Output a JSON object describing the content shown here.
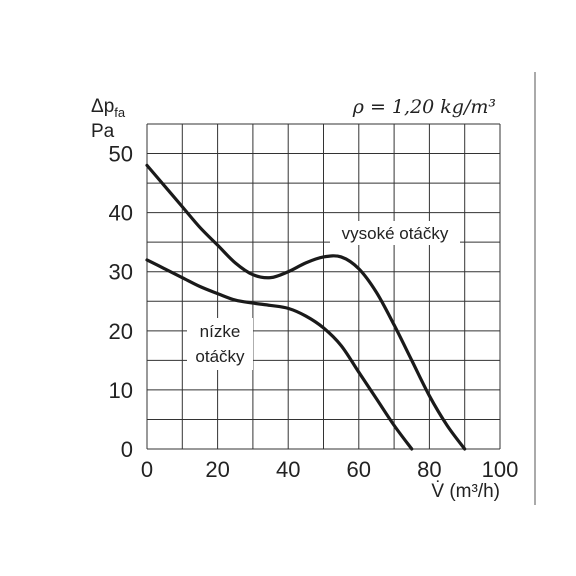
{
  "chart_data": {
    "type": "line",
    "title": "ρ = 1,20 kg/m³",
    "xlabel": "V̇ (m³/h)",
    "ylabel_top": "Δp",
    "ylabel_sub": "fa",
    "ylabel_unit": "Pa",
    "xlim": [
      0,
      100
    ],
    "ylim": [
      0,
      55
    ],
    "grid": true,
    "x_ticks": [
      0,
      20,
      40,
      60,
      80,
      100
    ],
    "y_ticks": [
      0,
      10,
      20,
      30,
      40,
      50
    ],
    "series": [
      {
        "name": "vysoké otáčky",
        "x": [
          0,
          5,
          10,
          15,
          20,
          25,
          30,
          35,
          40,
          45,
          50,
          55,
          60,
          65,
          70,
          75,
          80,
          85,
          90
        ],
        "y": [
          48,
          44.5,
          41,
          37.5,
          34.5,
          31.5,
          29.5,
          29,
          30,
          31.5,
          32.5,
          32.5,
          30.5,
          26.5,
          21,
          15,
          9,
          4,
          0
        ]
      },
      {
        "name": "nízke otáčky",
        "x": [
          0,
          5,
          10,
          15,
          20,
          25,
          30,
          35,
          40,
          45,
          50,
          55,
          60,
          65,
          70,
          75
        ],
        "y": [
          32,
          30.5,
          29,
          27.5,
          26.3,
          25.2,
          24.7,
          24.3,
          23.8,
          22.5,
          20.5,
          17.5,
          13,
          8.5,
          4,
          0
        ]
      }
    ]
  },
  "annotations": {
    "high": "vysoké otáčky",
    "low_line1": "nízke",
    "low_line2": "otáčky"
  }
}
